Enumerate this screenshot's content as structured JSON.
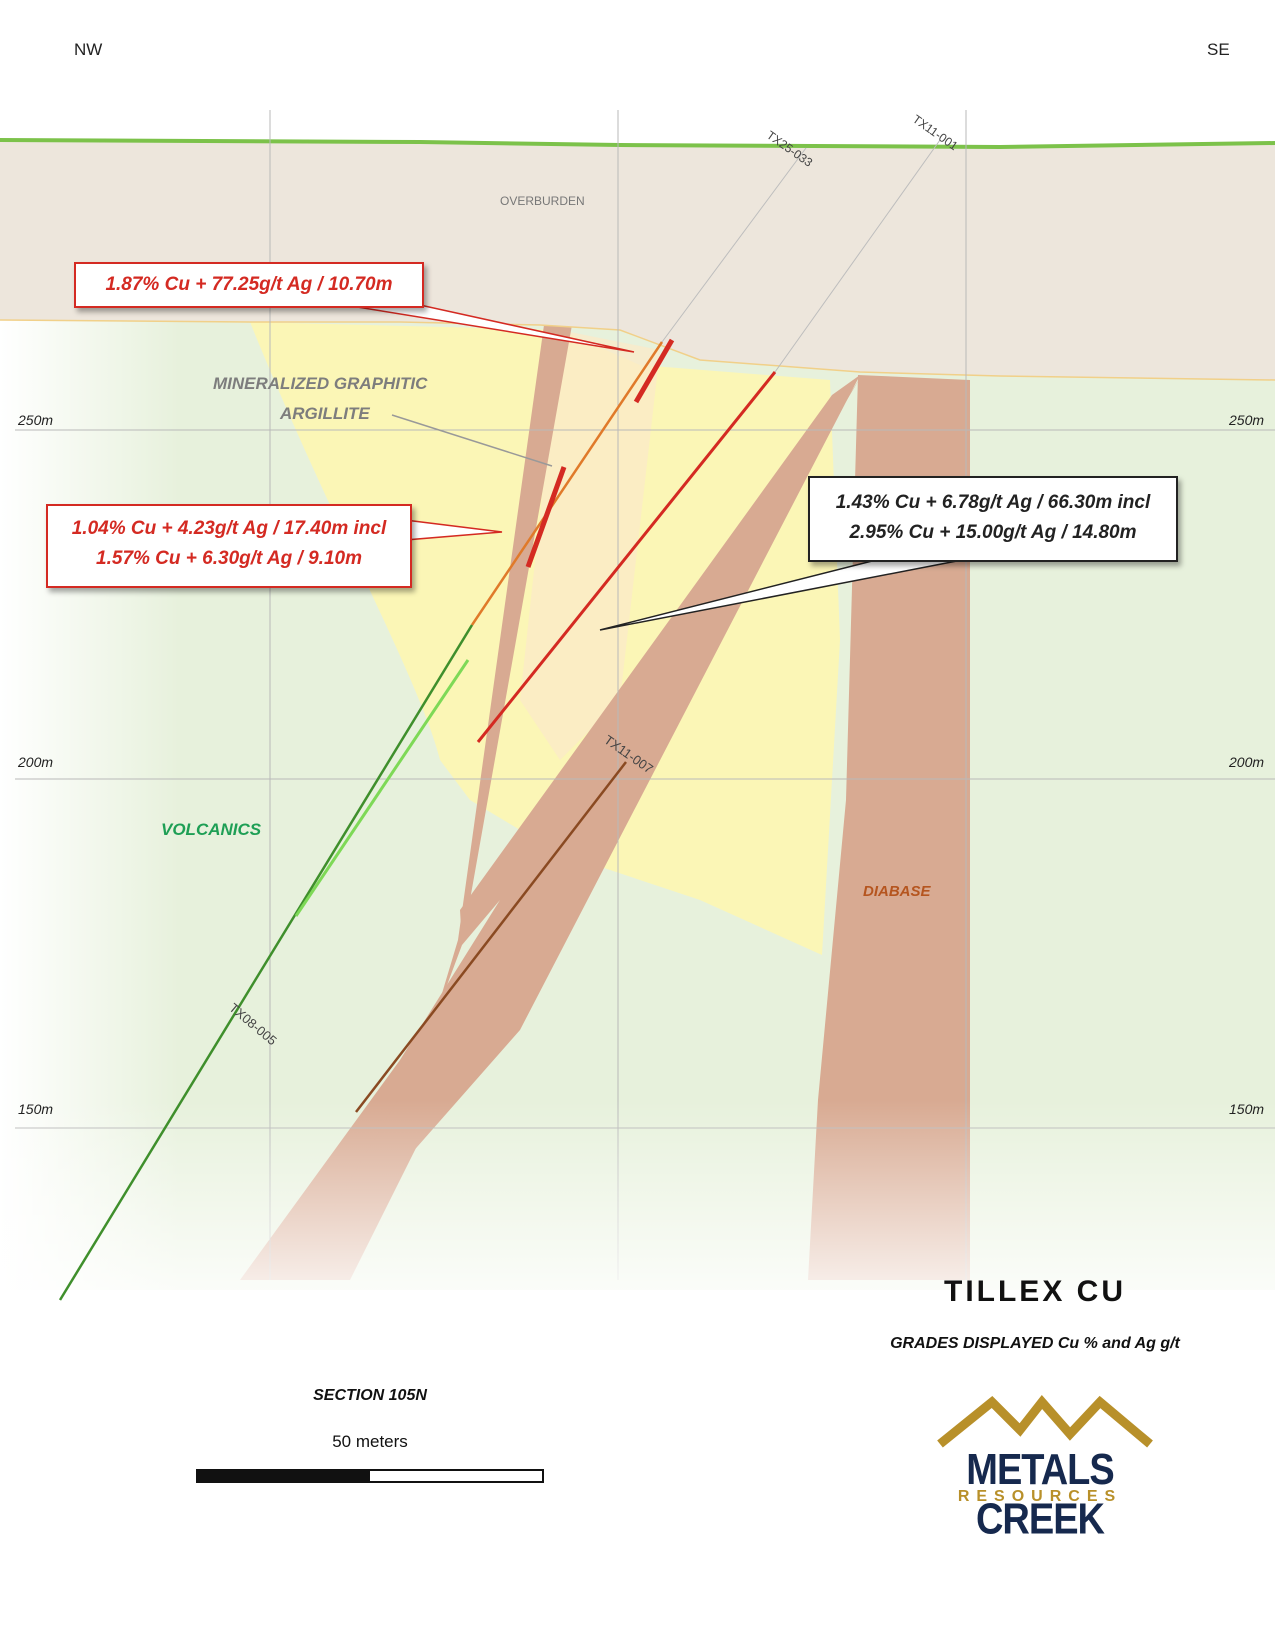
{
  "orientation": {
    "left": "NW",
    "right": "SE"
  },
  "elevations": {
    "e250": "250m",
    "e200": "200m",
    "e150": "150m"
  },
  "units": {
    "overburden": "OVERBURDEN",
    "mineralized_line1": "MINERALIZED GRAPHITIC",
    "mineralized_line2": "ARGILLITE",
    "volcanics": "VOLCANICS",
    "diabase": "DIABASE"
  },
  "drillholes": {
    "tx25_033": "TX25-033",
    "tx11_001": "TX11-001",
    "tx11_007": "TX11-007",
    "tx08_005": "TX08-005"
  },
  "intercepts": {
    "upper": "1.87% Cu + 77.25g/t Ag / 10.70m",
    "middle_line1": "1.04% Cu + 4.23g/t Ag / 17.40m incl",
    "middle_line2": "1.57% Cu + 6.30g/t Ag / 9.10m",
    "right_line1": "1.43% Cu + 6.78g/t Ag / 66.30m incl",
    "right_line2": "2.95% Cu + 15.00g/t Ag / 14.80m"
  },
  "title": "TILLEX CU",
  "subtitle": "GRADES DISPLAYED Cu % and Ag g/t",
  "section": "SECTION 105N",
  "scale": "50 meters",
  "logo": {
    "name": "METALS CREEK",
    "sub": "RESOURCES"
  },
  "colors": {
    "overburden": "#ede6dc",
    "graphitic_argillite": "#fbf6b6",
    "volcanics": "#e7f1dc",
    "diabase": "#d8aa92",
    "intercept_red": "#d42a22",
    "hole_green": "#3f8f2c",
    "hole_brown": "#8a4a22",
    "logo_navy": "#16294e",
    "logo_gold": "#b8902a"
  }
}
